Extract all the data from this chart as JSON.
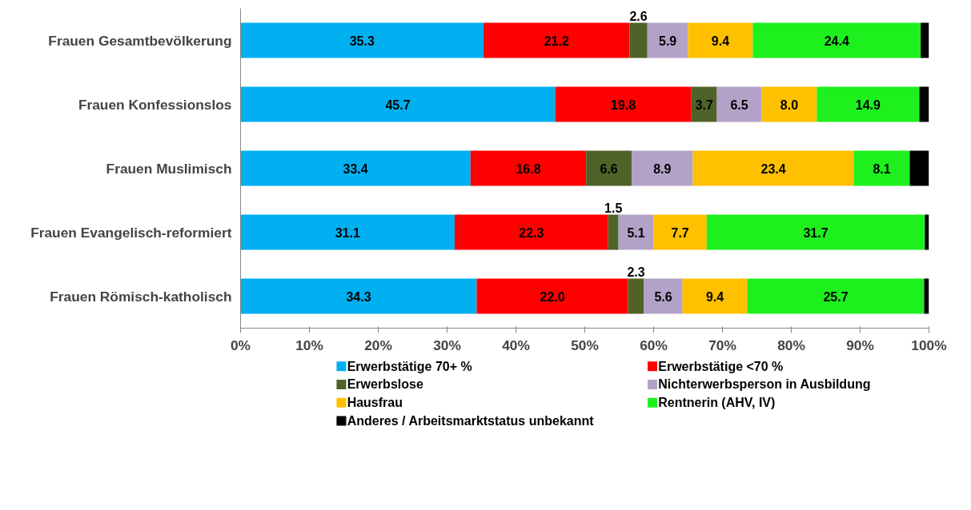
{
  "chart_data": {
    "type": "bar",
    "orientation": "horizontal",
    "stacked": true,
    "categories": [
      "Frauen Gesamtbevölkerung",
      "Frauen Konfessionslos",
      "Frauen Muslimisch",
      "Frauen Evangelisch-reformiert",
      "Frauen Römisch-katholisch"
    ],
    "series": [
      {
        "name": "Erwerbstätige 70+ %",
        "color": "#00b0f0",
        "values": [
          35.3,
          45.7,
          33.4,
          31.1,
          34.3
        ],
        "value_labels": [
          "35.3",
          "45.7",
          "33.4",
          "31.1",
          "34.3"
        ]
      },
      {
        "name": "Erwerbstätige <70 %",
        "color": "#ff0000",
        "values": [
          21.2,
          19.8,
          16.8,
          22.3,
          22.0
        ],
        "value_labels": [
          "21.2",
          "19.8",
          "16.8",
          "22.3",
          "22.0"
        ]
      },
      {
        "name": "Erwerbslose",
        "color": "#4f6228",
        "values": [
          2.6,
          3.7,
          6.6,
          1.5,
          2.3
        ],
        "value_labels": [
          "2.6",
          "3.7",
          "6.6",
          "1.5",
          "2.3"
        ]
      },
      {
        "name": "Nichterwerbsperson in Ausbildung",
        "color": "#b3a2c7",
        "values": [
          5.9,
          6.5,
          8.9,
          5.1,
          5.6
        ],
        "value_labels": [
          "5.9",
          "6.5",
          "8.9",
          "5.1",
          "5.6"
        ]
      },
      {
        "name": "Hausfrau",
        "color": "#ffc000",
        "values": [
          9.4,
          8.0,
          23.4,
          7.7,
          9.4
        ],
        "value_labels": [
          "9.4",
          "8.0",
          "23.4",
          "7.7",
          "9.4"
        ]
      },
      {
        "name": "Rentnerin (AHV, IV)",
        "color": "#1ef01e",
        "values": [
          24.4,
          14.9,
          8.1,
          31.7,
          25.7
        ],
        "value_labels": [
          "24.4",
          "14.9",
          "8.1",
          "31.7",
          "25.7"
        ]
      },
      {
        "name": "Anderes / Arbeitsmarktstatus unbekannt",
        "color": "#000000",
        "values": [
          1.2,
          1.4,
          2.8,
          0.6,
          0.7
        ],
        "value_labels": [
          null,
          null,
          null,
          null,
          null
        ]
      }
    ],
    "xlim": [
      0,
      100
    ],
    "xticks": [
      {
        "value": 0,
        "label": "0%"
      },
      {
        "value": 10,
        "label": "10%"
      },
      {
        "value": 20,
        "label": "20%"
      },
      {
        "value": 30,
        "label": "30%"
      },
      {
        "value": 40,
        "label": "40%"
      },
      {
        "value": 50,
        "label": "50%"
      },
      {
        "value": 60,
        "label": "60%"
      },
      {
        "value": 70,
        "label": "70%"
      },
      {
        "value": 80,
        "label": "80%"
      },
      {
        "value": 90,
        "label": "90%"
      },
      {
        "value": 100,
        "label": "100%"
      }
    ],
    "grid": false,
    "legend": "bottom"
  }
}
